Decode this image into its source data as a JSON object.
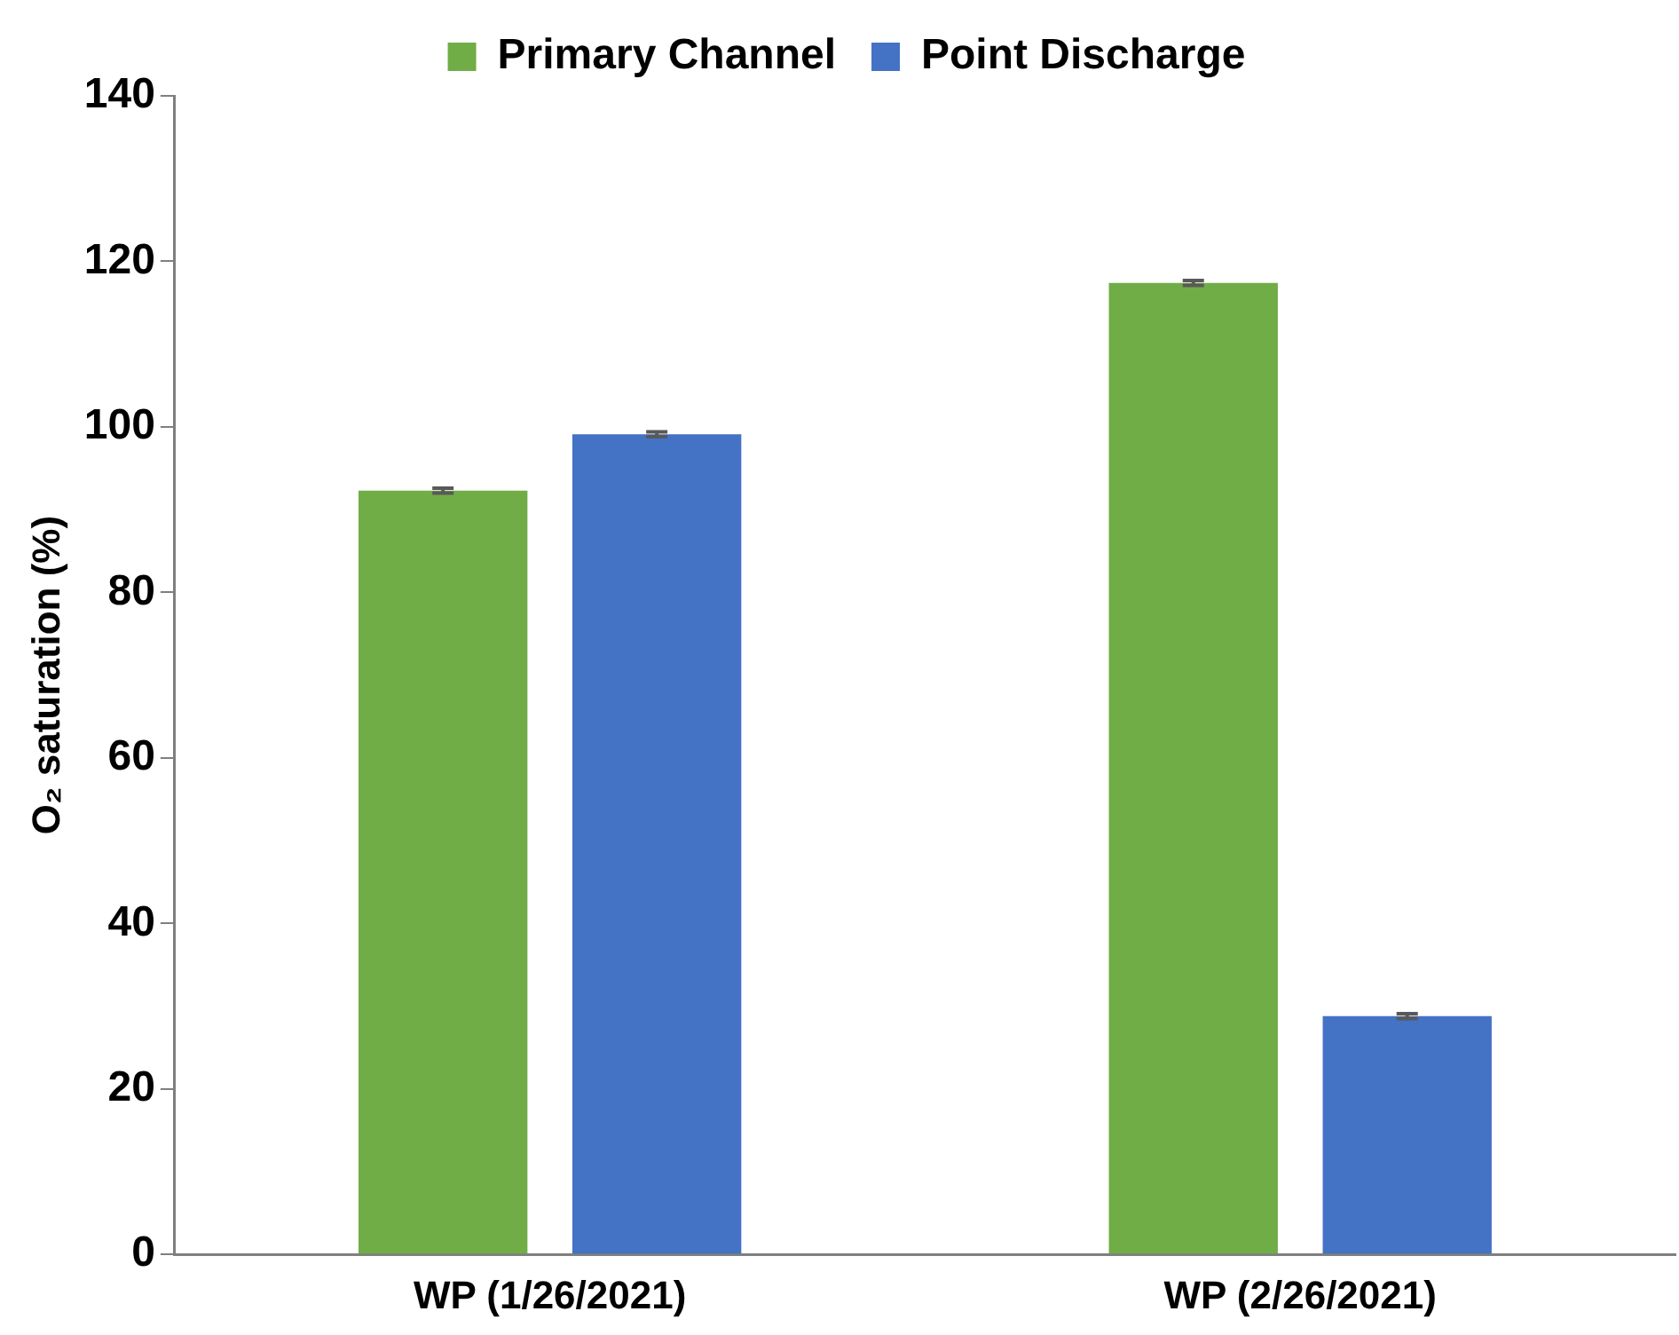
{
  "chart_data": {
    "type": "bar",
    "ylabel": "O₂ saturation (%)",
    "categories": [
      "WP (1/26/2021)",
      "WP (2/26/2021)"
    ],
    "series": [
      {
        "name": "Primary Channel",
        "color": "#70ad47",
        "values": [
          92.3,
          117.4
        ],
        "errors": [
          0.3,
          0.3
        ]
      },
      {
        "name": "Point Discharge",
        "color": "#4472c4",
        "values": [
          99.1,
          28.8
        ],
        "errors": [
          0.3,
          0.3
        ]
      }
    ],
    "ylim": [
      0,
      140
    ],
    "yticks": [
      0,
      20,
      40,
      60,
      80,
      100,
      120,
      140
    ],
    "grid": false,
    "legend": "top"
  }
}
